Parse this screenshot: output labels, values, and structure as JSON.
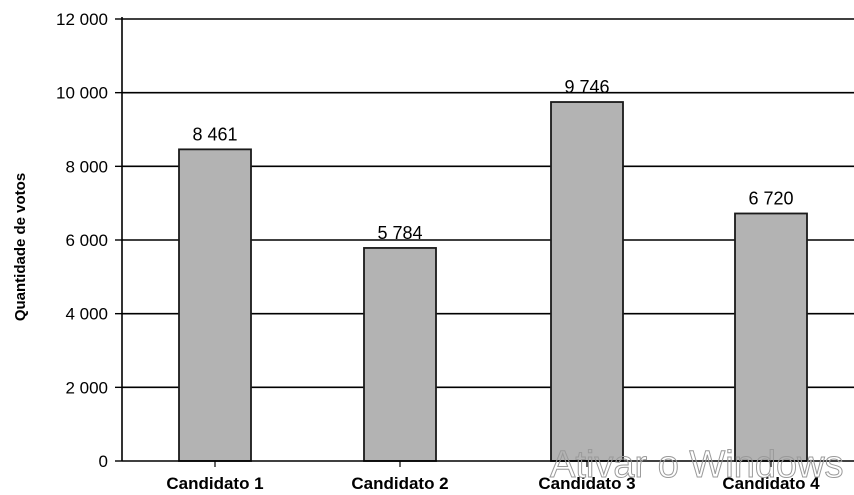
{
  "chart_data": {
    "type": "bar",
    "categories": [
      "Candidato 1",
      "Candidato 2",
      "Candidato 3",
      "Candidato 4"
    ],
    "values": [
      8461,
      5784,
      9746,
      6720
    ],
    "value_labels": [
      "8 461",
      "5 784",
      "9 746",
      "6 720"
    ],
    "ylabel": "Quantidade de votos",
    "ylim": [
      0,
      12000
    ],
    "yticks": [
      0,
      2000,
      4000,
      6000,
      8000,
      10000,
      12000
    ],
    "ytick_labels": [
      "0",
      "2 000",
      "4 000",
      "6 000",
      "8 000",
      "10 000",
      "12 000"
    ],
    "grid": true,
    "colors": {
      "bar_fill": "#b3b3b3",
      "bar_stroke": "#1a1a1a",
      "grid": "#000000"
    }
  },
  "watermark": {
    "text": "Ativar o Windows"
  }
}
